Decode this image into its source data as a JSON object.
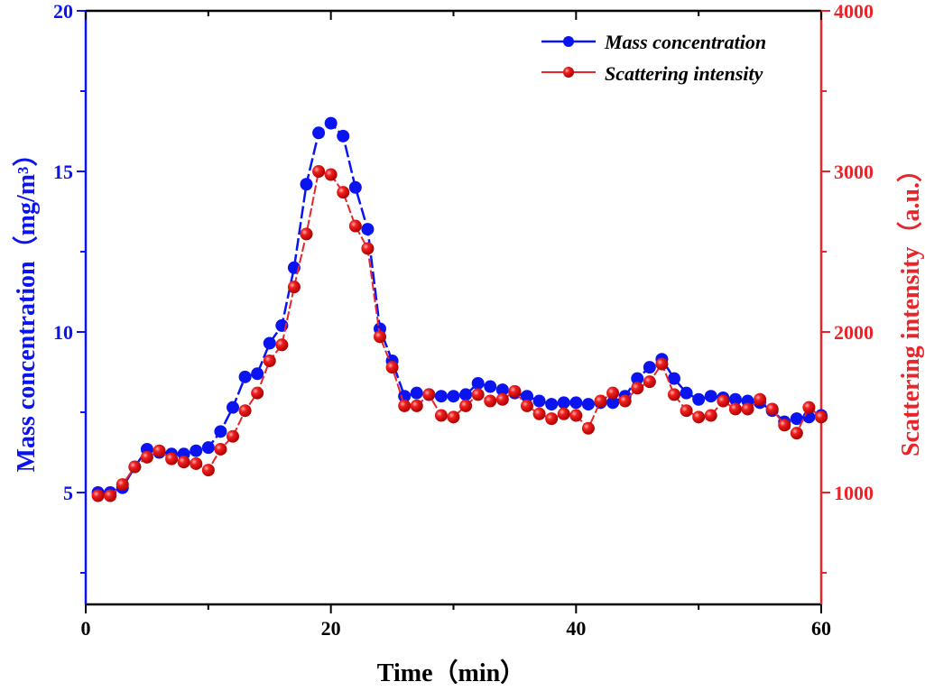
{
  "chart_data": {
    "type": "line",
    "xlabel": "Time（min）",
    "ylabel_left": "Mass concentration（mg/m³）",
    "ylabel_right": "Scattering intensity（a.u.）",
    "xlim": [
      0,
      60
    ],
    "ylim_left": [
      1.5,
      20
    ],
    "ylim_right": [
      300,
      4000
    ],
    "x_ticks": [
      "0",
      "20",
      "40",
      "60"
    ],
    "y_left_ticks": [
      "5",
      "10",
      "15",
      "20"
    ],
    "y_right_ticks": [
      "1000",
      "2000",
      "3000",
      "4000"
    ],
    "grid": false,
    "legend_position": "top-right",
    "x": [
      1,
      2,
      3,
      4,
      5,
      6,
      7,
      8,
      9,
      10,
      11,
      12,
      13,
      14,
      15,
      16,
      17,
      18,
      19,
      20,
      21,
      22,
      23,
      24,
      25,
      26,
      27,
      28,
      29,
      30,
      31,
      32,
      33,
      34,
      35,
      36,
      37,
      38,
      39,
      40,
      41,
      42,
      43,
      44,
      45,
      46,
      47,
      48,
      49,
      50,
      51,
      52,
      53,
      54,
      55,
      56,
      57,
      58,
      59,
      60
    ],
    "series": [
      {
        "name": "Mass concentration",
        "axis": "left",
        "color": "#0a14f0",
        "values": [
          5.0,
          5.0,
          5.15,
          5.8,
          6.35,
          6.25,
          6.2,
          6.2,
          6.3,
          6.4,
          6.9,
          7.65,
          8.6,
          8.7,
          9.65,
          10.2,
          12.0,
          14.6,
          16.2,
          16.5,
          16.1,
          14.5,
          13.2,
          10.1,
          9.1,
          8.0,
          8.1,
          8.05,
          8.0,
          8.0,
          8.05,
          8.4,
          8.3,
          8.2,
          8.1,
          8.0,
          7.85,
          7.75,
          7.8,
          7.8,
          7.75,
          7.8,
          7.8,
          8.0,
          8.55,
          8.9,
          9.15,
          8.55,
          8.1,
          7.9,
          8.0,
          7.95,
          7.9,
          7.85,
          7.8,
          7.55,
          7.2,
          7.3,
          7.35,
          7.4
        ]
      },
      {
        "name": "Scattering intensity",
        "axis": "right",
        "color": "#e8262a",
        "values": [
          980,
          980,
          1050,
          1160,
          1220,
          1260,
          1210,
          1190,
          1180,
          1140,
          1270,
          1350,
          1510,
          1620,
          1820,
          1920,
          2280,
          2610,
          3000,
          2980,
          2870,
          2660,
          2520,
          1970,
          1780,
          1540,
          1540,
          1610,
          1480,
          1470,
          1540,
          1610,
          1570,
          1580,
          1630,
          1540,
          1490,
          1460,
          1490,
          1480,
          1400,
          1570,
          1620,
          1570,
          1650,
          1690,
          1800,
          1610,
          1510,
          1470,
          1480,
          1570,
          1520,
          1520,
          1580,
          1520,
          1420,
          1370,
          1530,
          1470
        ]
      }
    ]
  }
}
